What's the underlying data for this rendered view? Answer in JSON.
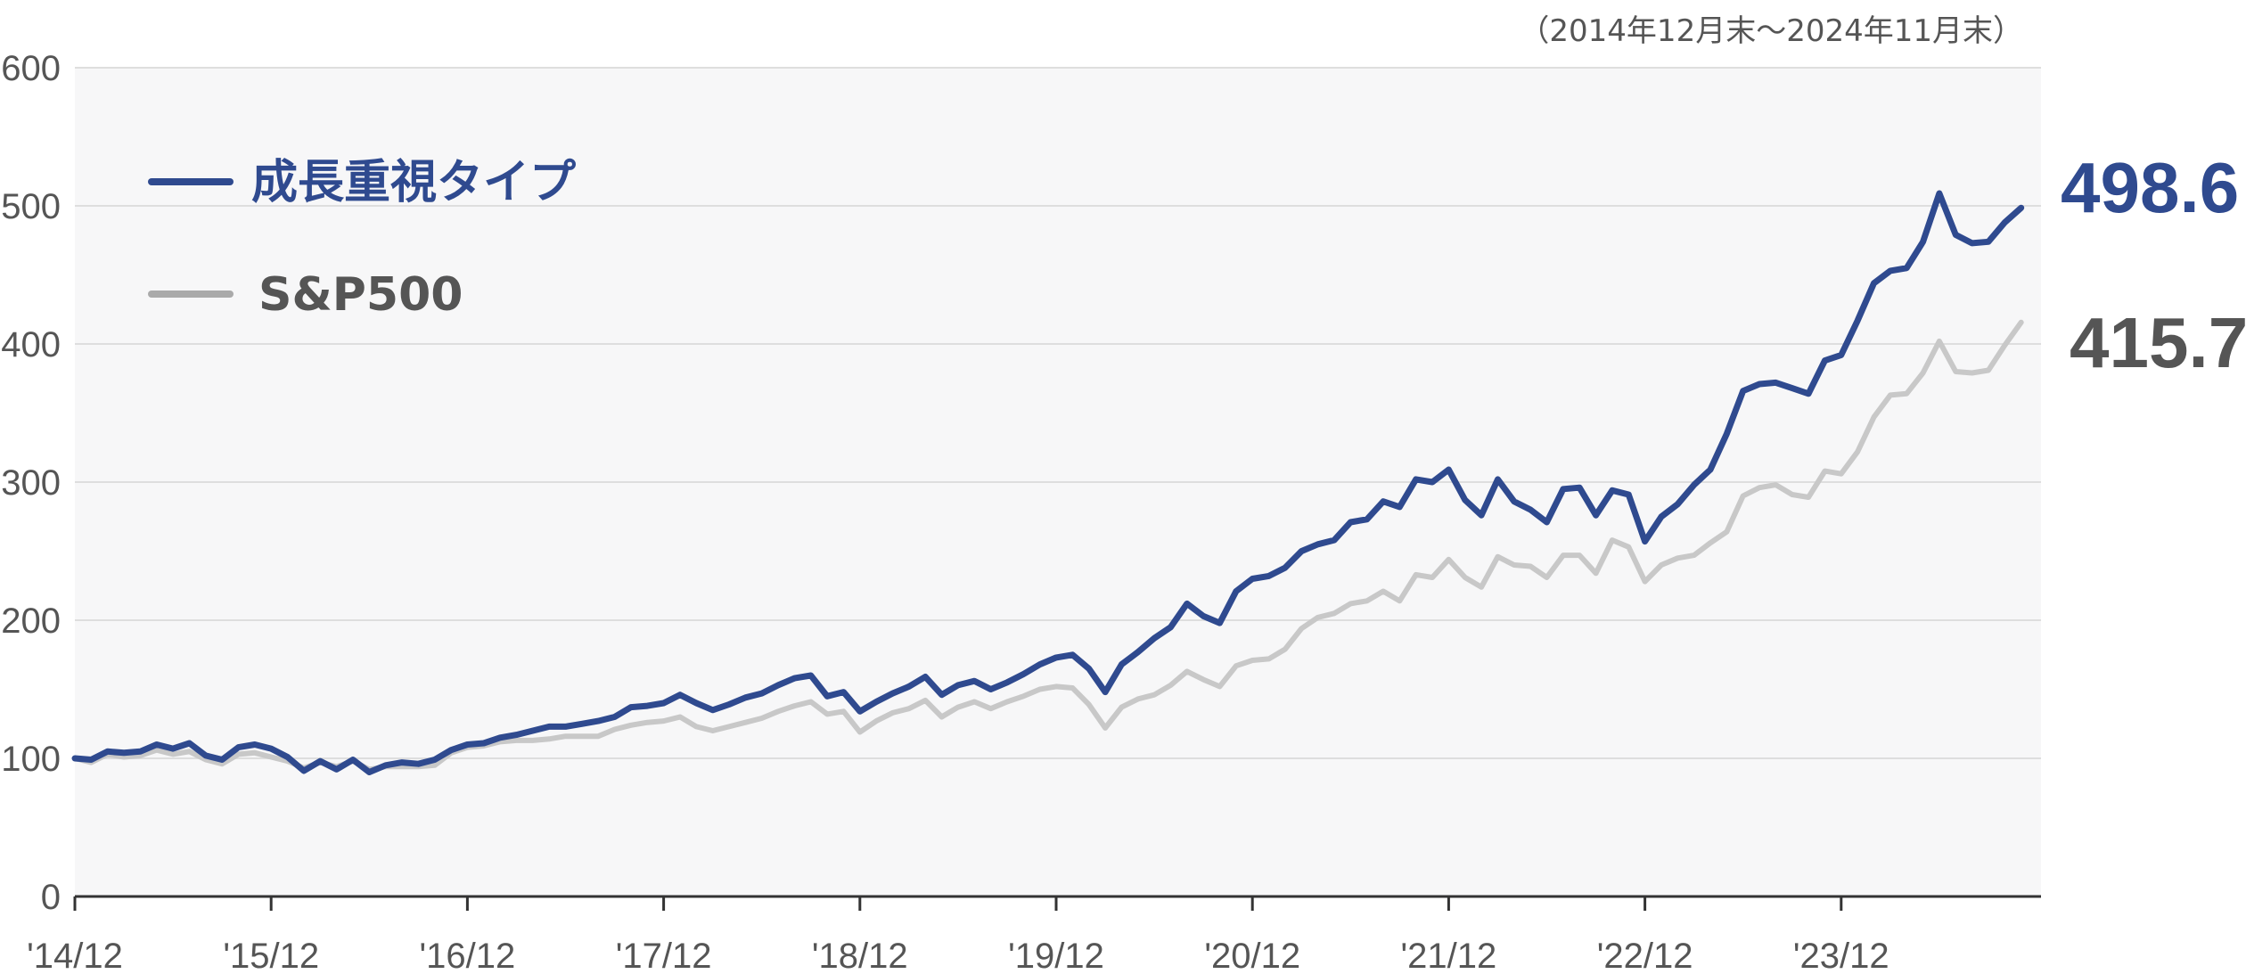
{
  "period_note": "（2014年12月末～2024年11月末）",
  "colors": {
    "growth": "#2f4a8f",
    "sp500": "#c8c8c8",
    "sp500_legend": "#aaaaaa",
    "sp500_label": "#555555",
    "grid": "#dedede",
    "plot_bg": "#f7f7f8",
    "axis": "#333333"
  },
  "chart_data": {
    "type": "line",
    "title": "",
    "xlabel": "",
    "ylabel": "",
    "ylim": [
      0,
      600
    ],
    "yticks": [
      0,
      100,
      200,
      300,
      400,
      500,
      600
    ],
    "xlim": [
      0,
      120
    ],
    "x_tick_positions": [
      0,
      12,
      24,
      36,
      48,
      60,
      72,
      84,
      96,
      108
    ],
    "x_tick_labels": [
      "'14/12",
      "'15/12",
      "'16/12",
      "'17/12",
      "'18/12",
      "'19/12",
      "'20/12",
      "'21/12",
      "'22/12",
      "'23/12"
    ],
    "grid": true,
    "legend_position": "top-left",
    "series": [
      {
        "name": "成長重視タイプ",
        "end_label": "498.6",
        "values": [
          100,
          99,
          105,
          104,
          105,
          110,
          107,
          111,
          102,
          99,
          108,
          110,
          107,
          101,
          91,
          98,
          92,
          99,
          90,
          95,
          97,
          96,
          99,
          106,
          110,
          111,
          115,
          117,
          120,
          123,
          123,
          125,
          127,
          130,
          137,
          138,
          140,
          146,
          140,
          135,
          139,
          144,
          147,
          153,
          158,
          160,
          145,
          148,
          134,
          141,
          147,
          152,
          159,
          146,
          153,
          156,
          150,
          155,
          161,
          168,
          173,
          175,
          165,
          148,
          168,
          177,
          187,
          195,
          212,
          203,
          198,
          221,
          230,
          232,
          238,
          250,
          255,
          258,
          271,
          273,
          286,
          282,
          302,
          300,
          309,
          287,
          276,
          302,
          286,
          280,
          271,
          295,
          296,
          276,
          294,
          291,
          257,
          275,
          284,
          298,
          309,
          335,
          366,
          371,
          372,
          368,
          364,
          388,
          392,
          417,
          444,
          453,
          455,
          474,
          509,
          479,
          473,
          474,
          488,
          498.6
        ]
      },
      {
        "name": "S&P500",
        "end_label": "415.7",
        "values": [
          100,
          97,
          103,
          101,
          102,
          106,
          103,
          105,
          99,
          96,
          103,
          104,
          101,
          98,
          93,
          97,
          94,
          98,
          92,
          94,
          94,
          94,
          95,
          104,
          108,
          109,
          112,
          113,
          113,
          114,
          116,
          116,
          116,
          121,
          124,
          126,
          127,
          130,
          123,
          120,
          123,
          126,
          129,
          134,
          138,
          141,
          132,
          134,
          119,
          127,
          133,
          136,
          142,
          130,
          137,
          141,
          136,
          141,
          145,
          150,
          152,
          151,
          139,
          122,
          137,
          143,
          146,
          153,
          163,
          157,
          152,
          167,
          171,
          172,
          179,
          194,
          202,
          205,
          212,
          214,
          221,
          214,
          233,
          231,
          244,
          231,
          224,
          246,
          240,
          239,
          231,
          247,
          247,
          234,
          258,
          253,
          228,
          240,
          245,
          247,
          256,
          264,
          290,
          296,
          298,
          291,
          289,
          308,
          306,
          322,
          347,
          363,
          364,
          379,
          402,
          380,
          379,
          381,
          399,
          415.7
        ]
      }
    ]
  }
}
